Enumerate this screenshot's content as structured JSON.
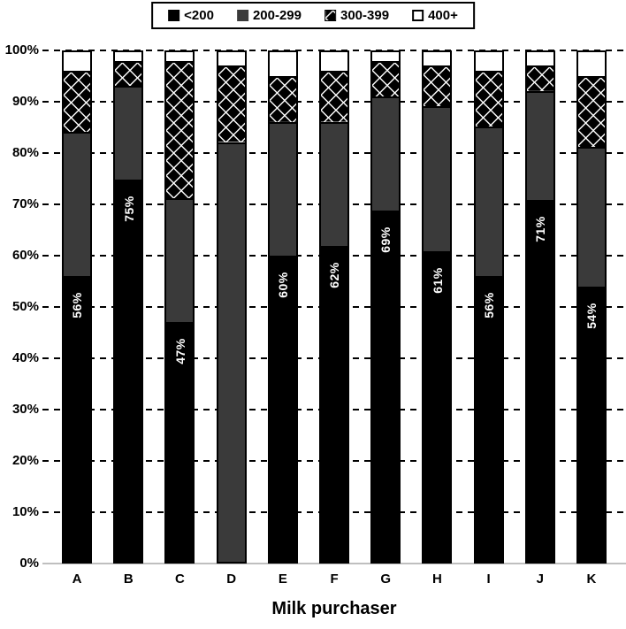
{
  "legend": {
    "items": [
      {
        "label": "<200",
        "swatch": "black"
      },
      {
        "label": "200-299",
        "swatch": "gray"
      },
      {
        "label": "300-399",
        "swatch": "pattern"
      },
      {
        "label": "400+",
        "swatch": "white"
      }
    ]
  },
  "y_axis": {
    "tick_labels": [
      "100%",
      "90%",
      "80%",
      "70%",
      "60%",
      "50%",
      "40%",
      "30%",
      "20%",
      "10%",
      "0%"
    ]
  },
  "colors": {
    "black": "#000000",
    "dark_gray": "#3a3a3a",
    "white": "#ffffff",
    "grid": "#000000",
    "baseline": "#bfbfbf",
    "bar_label_text": "#ffffff"
  },
  "chart_data": {
    "type": "bar",
    "stacked": true,
    "percent_stacked": true,
    "orientation": "vertical",
    "title": "",
    "xlabel": "Milk purchaser",
    "ylabel": "",
    "ylim": [
      0,
      100
    ],
    "y_tick_step": 10,
    "grid": "dashed-horizontal",
    "legend_position": "top-center",
    "categories": [
      "A",
      "B",
      "C",
      "D",
      "E",
      "F",
      "G",
      "H",
      "I",
      "J",
      "K"
    ],
    "series": [
      {
        "name": "<200",
        "pattern": "solid-black",
        "values": [
          56,
          75,
          47,
          0,
          60,
          62,
          69,
          61,
          56,
          71,
          54
        ]
      },
      {
        "name": "200-299",
        "pattern": "solid-dark-gray",
        "values": [
          28,
          18,
          24,
          82,
          26,
          24,
          22,
          28,
          29,
          21,
          27
        ]
      },
      {
        "name": "300-399",
        "pattern": "black-diamond-checker",
        "values": [
          12,
          5,
          27,
          15,
          9,
          10,
          7,
          8,
          11,
          5,
          14
        ]
      },
      {
        "name": "400+",
        "pattern": "white-outline",
        "values": [
          4,
          2,
          2,
          3,
          5,
          4,
          2,
          3,
          4,
          3,
          5
        ]
      }
    ],
    "bar_value_labels": [
      "56%",
      "75%",
      "47%",
      "",
      "60%",
      "62%",
      "69%",
      "61%",
      "56%",
      "71%",
      "54%"
    ]
  }
}
